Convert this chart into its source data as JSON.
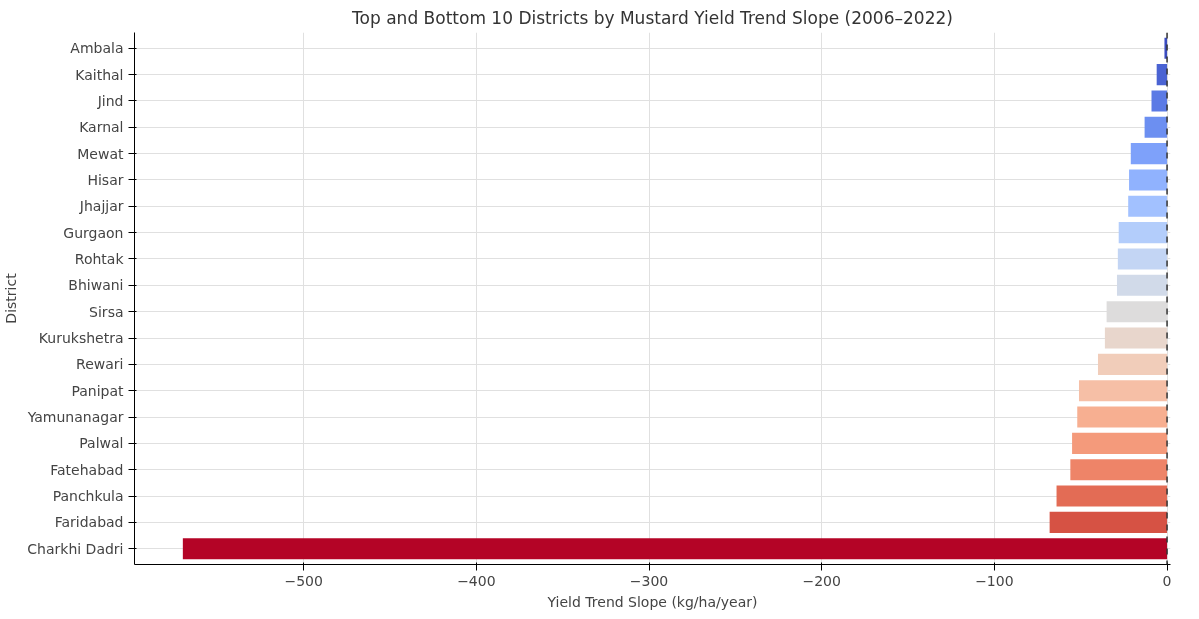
{
  "chart_data": {
    "type": "bar",
    "orientation": "horizontal",
    "title": "Top and Bottom 10 Districts by Mustard Yield Trend Slope (2006–2022)",
    "xlabel": "Yield Trend Slope (kg/ha/year)",
    "ylabel": "District",
    "categories": [
      "Ambala",
      "Kaithal",
      "Jind",
      "Karnal",
      "Mewat",
      "Hisar",
      "Jhajjar",
      "Gurgaon",
      "Rohtak",
      "Bhiwani",
      "Sirsa",
      "Kurukshetra",
      "Rewari",
      "Panipat",
      "Yamunanagar",
      "Palwal",
      "Fatehabad",
      "Panchkula",
      "Faridabad",
      "Charkhi Dadri"
    ],
    "values": [
      -1.5,
      -6,
      -9,
      -13,
      -21,
      -22,
      -22.5,
      -28,
      -28.5,
      -29,
      -35,
      -36,
      -40,
      -51,
      -52,
      -55,
      -56,
      -64,
      -68,
      -570
    ],
    "colors": [
      "#3b4cc0",
      "#4a63d3",
      "#5b7ae5",
      "#6c8ff1",
      "#7ea1fa",
      "#90b2fe",
      "#a2c1ff",
      "#b3cdfb",
      "#c3d5f4",
      "#d1dae9",
      "#dddcdc",
      "#e8d6cc",
      "#f1cdba",
      "#f6bfa6",
      "#f7af91",
      "#f49a7b",
      "#ee8468",
      "#e36c55",
      "#d65244",
      "#b40426"
    ],
    "xlim": [
      -598,
      2
    ],
    "xticks": [
      {
        "value": -500,
        "label": "−500"
      },
      {
        "value": -400,
        "label": "−400"
      },
      {
        "value": -300,
        "label": "−300"
      },
      {
        "value": -200,
        "label": "−200"
      },
      {
        "value": -100,
        "label": "−100"
      },
      0
    ],
    "grid": true,
    "ref_lines": [
      {
        "axis": "x",
        "value": 0,
        "label": null,
        "color": "#333333",
        "line_style": "dashed"
      }
    ]
  }
}
